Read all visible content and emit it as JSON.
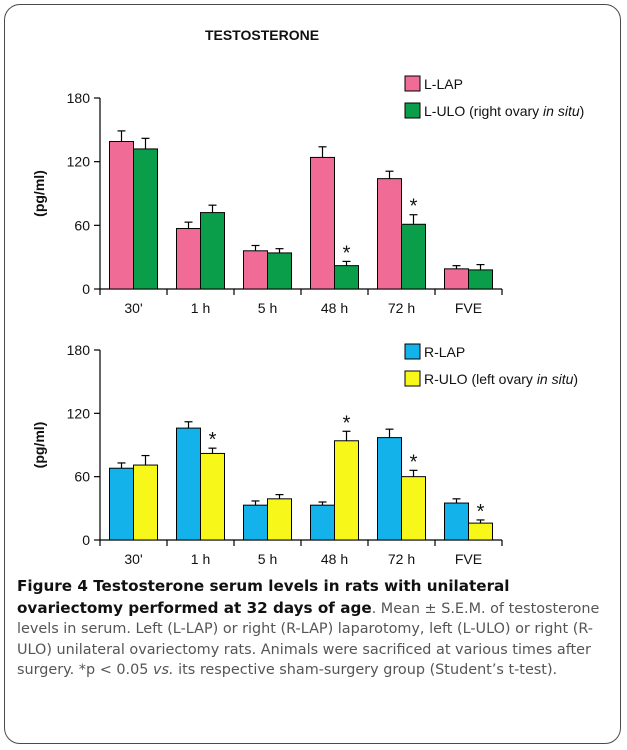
{
  "chart_data": [
    {
      "type": "bar",
      "title": "TESTOSTERONE",
      "ylabel": "(pg/ml)",
      "xlabel": "",
      "ylim": [
        0,
        180
      ],
      "yticks": [
        0,
        60,
        120,
        180
      ],
      "categories": [
        "30'",
        "1 h",
        "5 h",
        "48 h",
        "72 h",
        "FVE"
      ],
      "legend": {
        "placement": "top-right",
        "entries": [
          {
            "text": "L-LAP",
            "italic": ""
          },
          {
            "text": "L-ULO (right ovary ",
            "italic": "in situ",
            "after": ")"
          }
        ]
      },
      "series": [
        {
          "name": "L-LAP",
          "color": "#f06b96",
          "values": [
            139,
            57,
            36,
            124,
            104,
            19
          ],
          "errors": [
            10,
            6,
            5,
            10,
            7,
            3
          ],
          "significant": [
            false,
            false,
            false,
            false,
            false,
            false
          ]
        },
        {
          "name": "L-ULO (right ovary in situ)",
          "color": "#0a9e4a",
          "values": [
            132,
            72,
            34,
            22,
            61,
            18
          ],
          "errors": [
            10,
            7,
            4,
            4,
            9,
            5
          ],
          "significant": [
            false,
            false,
            false,
            true,
            true,
            false
          ]
        }
      ],
      "marker": "*"
    },
    {
      "type": "bar",
      "title": "",
      "ylabel": "(pg/ml)",
      "xlabel": "",
      "ylim": [
        0,
        180
      ],
      "yticks": [
        0,
        60,
        120,
        180
      ],
      "categories": [
        "30'",
        "1 h",
        "5 h",
        "48 h",
        "72 h",
        "FVE"
      ],
      "legend": {
        "placement": "top-right",
        "entries": [
          {
            "text": "R-LAP",
            "italic": ""
          },
          {
            "text": "R-ULO (left ovary ",
            "italic": "in situ",
            "after": ")"
          }
        ]
      },
      "series": [
        {
          "name": "R-LAP",
          "color": "#13b2ea",
          "values": [
            68,
            106,
            33,
            33,
            97,
            35
          ],
          "errors": [
            5,
            6,
            4,
            3,
            8,
            4
          ],
          "significant": [
            false,
            false,
            false,
            false,
            false,
            false
          ]
        },
        {
          "name": "R-ULO (left ovary in situ)",
          "color": "#f7f71a",
          "values": [
            71,
            82,
            39,
            94,
            60,
            16
          ],
          "errors": [
            9,
            5,
            4,
            9,
            6,
            3
          ],
          "significant": [
            false,
            true,
            false,
            true,
            true,
            true
          ]
        }
      ],
      "marker": "*"
    }
  ],
  "caption": {
    "figure_label": "Figure 4 ",
    "title": "Testosterone serum levels in rats with unilateral ovariectomy performed at 32 days of age",
    "body_1": ". Mean ± S.E.M. of testosterone levels in serum. Left (L-LAP) or right (R-LAP) laparotomy, left (L-ULO) or right (R-ULO) unilateral ovariectomy rats. Animals were sacrificed at various times after surgery. *p < 0.05 ",
    "body_italic": "vs.",
    "body_2": " its respective sham-surgery group (Student’s t-test)."
  }
}
